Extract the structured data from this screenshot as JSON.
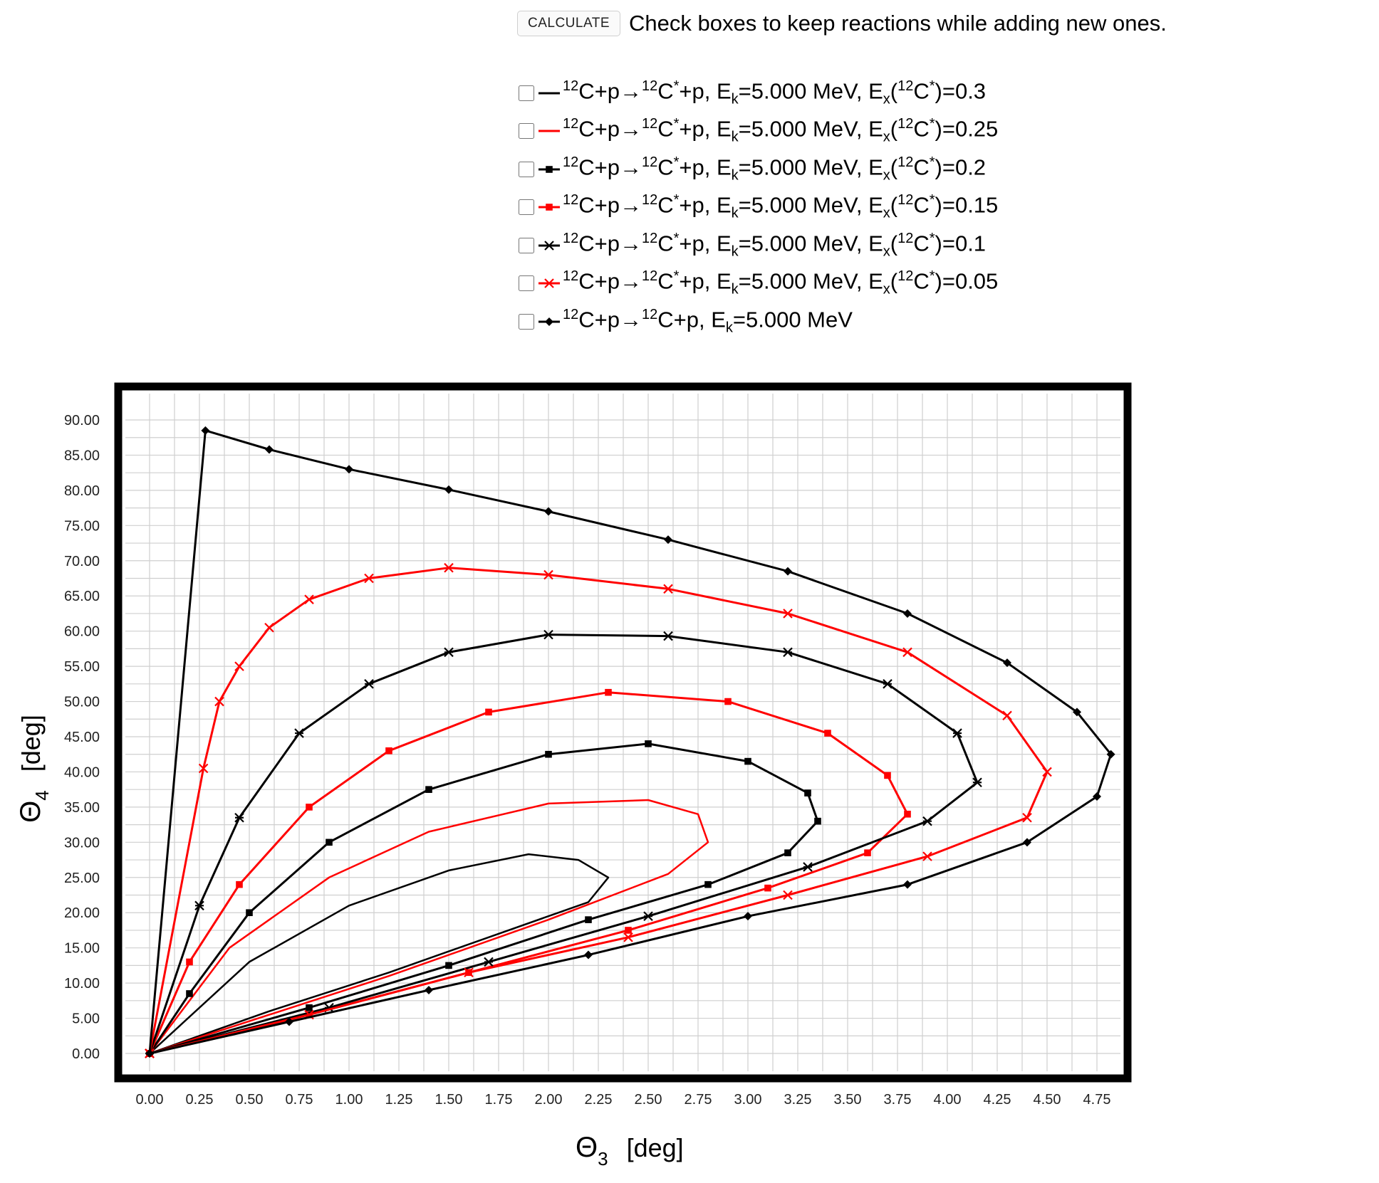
{
  "controls": {
    "calculate_label": "CALCULATE",
    "hint": "Check boxes to keep reactions while adding new ones."
  },
  "legend": [
    {
      "pre": "12",
      "m1": "C+p→",
      "pre2": "12",
      "m2": "C",
      "star": "*",
      "m3": "+p, E",
      "sub": "k",
      "m4": "=5.000 MeV, E",
      "sub2": "x",
      "m5": "(",
      "pre3": "12",
      "m6": "C",
      "star2": "*",
      "m7": ")=0.3",
      "checked": false,
      "color": "#000000",
      "marker": "none"
    },
    {
      "pre": "12",
      "m1": "C+p→",
      "pre2": "12",
      "m2": "C",
      "star": "*",
      "m3": "+p, E",
      "sub": "k",
      "m4": "=5.000 MeV, E",
      "sub2": "x",
      "m5": "(",
      "pre3": "12",
      "m6": "C",
      "star2": "*",
      "m7": ")=0.25",
      "checked": false,
      "color": "#ff0000",
      "marker": "none"
    },
    {
      "pre": "12",
      "m1": "C+p→",
      "pre2": "12",
      "m2": "C",
      "star": "*",
      "m3": "+p, E",
      "sub": "k",
      "m4": "=5.000 MeV, E",
      "sub2": "x",
      "m5": "(",
      "pre3": "12",
      "m6": "C",
      "star2": "*",
      "m7": ")=0.2",
      "checked": false,
      "color": "#000000",
      "marker": "square"
    },
    {
      "pre": "12",
      "m1": "C+p→",
      "pre2": "12",
      "m2": "C",
      "star": "*",
      "m3": "+p, E",
      "sub": "k",
      "m4": "=5.000 MeV, E",
      "sub2": "x",
      "m5": "(",
      "pre3": "12",
      "m6": "C",
      "star2": "*",
      "m7": ")=0.15",
      "checked": false,
      "color": "#ff0000",
      "marker": "square"
    },
    {
      "pre": "12",
      "m1": "C+p→",
      "pre2": "12",
      "m2": "C",
      "star": "*",
      "m3": "+p, E",
      "sub": "k",
      "m4": "=5.000 MeV, E",
      "sub2": "x",
      "m5": "(",
      "pre3": "12",
      "m6": "C",
      "star2": "*",
      "m7": ")=0.1",
      "checked": false,
      "color": "#000000",
      "marker": "star"
    },
    {
      "pre": "12",
      "m1": "C+p→",
      "pre2": "12",
      "m2": "C",
      "star": "*",
      "m3": "+p, E",
      "sub": "k",
      "m4": "=5.000 MeV, E",
      "sub2": "x",
      "m5": "(",
      "pre3": "12",
      "m6": "C",
      "star2": "*",
      "m7": ")=0.05",
      "checked": false,
      "color": "#ff0000",
      "marker": "x"
    },
    {
      "pre": "12",
      "m1": "C+p→",
      "pre2": "12",
      "m2": "C+p, E",
      "star": "",
      "m3": "",
      "sub": "k",
      "m4": "=5.000 MeV",
      "sub2": "",
      "m5": "",
      "pre3": "",
      "m6": "",
      "star2": "",
      "m7": "",
      "checked": false,
      "color": "#000000",
      "marker": "diamond"
    }
  ],
  "chart_data": {
    "type": "line",
    "xlabel": "Θ3 [deg]",
    "ylabel": "Θ4 [deg]",
    "xlabel_main": "Θ",
    "xlabel_sub": "3",
    "xlabel_unit": "[deg]",
    "ylabel_main": "Θ",
    "ylabel_sub": "4",
    "ylabel_unit": "[deg]",
    "xlim": [
      0,
      4.75
    ],
    "ylim": [
      0,
      90
    ],
    "xticks": [
      "0.00",
      "0.25",
      "0.50",
      "0.75",
      "1.00",
      "1.25",
      "1.50",
      "1.75",
      "2.00",
      "2.25",
      "2.50",
      "2.75",
      "3.00",
      "3.25",
      "3.50",
      "3.75",
      "4.00",
      "4.25",
      "4.50",
      "4.75"
    ],
    "yticks": [
      "0.00",
      "5.00",
      "10.00",
      "15.00",
      "20.00",
      "25.00",
      "30.00",
      "35.00",
      "40.00",
      "45.00",
      "50.00",
      "55.00",
      "60.00",
      "65.00",
      "70.00",
      "75.00",
      "80.00",
      "85.00",
      "90.00"
    ],
    "grid": true,
    "series": [
      {
        "name": "12C+p→12C*+p, Ek=5.000 MeV, Ex(12C*)=0.3",
        "color": "#000000",
        "marker": "none",
        "x": [
          0,
          0.5,
          1.0,
          1.5,
          1.9,
          2.15,
          2.3,
          2.2,
          1.8,
          1.2,
          0.6,
          0
        ],
        "y": [
          0,
          13,
          21,
          26,
          28.3,
          27.5,
          25,
          21.5,
          17.5,
          11.5,
          6,
          0
        ]
      },
      {
        "name": "12C+p→12C*+p, Ek=5.000 MeV, Ex(12C*)=0.25",
        "color": "#ff0000",
        "marker": "none",
        "x": [
          0,
          0.4,
          0.9,
          1.4,
          2.0,
          2.5,
          2.75,
          2.8,
          2.6,
          2.0,
          1.2,
          0.6,
          0
        ],
        "y": [
          0,
          15,
          25,
          31.5,
          35.5,
          36,
          34,
          30,
          25.5,
          19,
          11,
          5.5,
          0
        ]
      },
      {
        "name": "12C+p→12C*+p, Ek=5.000 MeV, Ex(12C*)=0.2",
        "color": "#000000",
        "marker": "square",
        "x": [
          0,
          0.2,
          0.5,
          0.9,
          1.4,
          2.0,
          2.5,
          3.0,
          3.3,
          3.35,
          3.2,
          2.8,
          2.2,
          1.5,
          0.8,
          0
        ],
        "y": [
          0,
          8.5,
          20,
          30,
          37.5,
          42.5,
          44,
          41.5,
          37,
          33,
          28.5,
          24,
          19,
          12.5,
          6.5,
          0
        ]
      },
      {
        "name": "12C+p→12C*+p, Ek=5.000 MeV, Ex(12C*)=0.15",
        "color": "#ff0000",
        "marker": "square",
        "x": [
          0,
          0.2,
          0.45,
          0.8,
          1.2,
          1.7,
          2.3,
          2.9,
          3.4,
          3.7,
          3.8,
          3.6,
          3.1,
          2.4,
          1.6,
          0.8,
          0
        ],
        "y": [
          0,
          13,
          24,
          35,
          43,
          48.5,
          51.3,
          50,
          45.5,
          39.5,
          34,
          28.5,
          23.5,
          17.5,
          11.5,
          5.5,
          0
        ]
      },
      {
        "name": "12C+p→12C*+p, Ek=5.000 MeV, Ex(12C*)=0.1",
        "color": "#000000",
        "marker": "star",
        "x": [
          0,
          0.25,
          0.45,
          0.75,
          1.1,
          1.5,
          2.0,
          2.6,
          3.2,
          3.7,
          4.05,
          4.15,
          3.9,
          3.3,
          2.5,
          1.7,
          0.9,
          0
        ],
        "y": [
          0,
          21,
          33.5,
          45.5,
          52.5,
          57,
          59.5,
          59.3,
          57,
          52.5,
          45.5,
          38.5,
          33,
          26.5,
          19.5,
          13,
          6.5,
          0
        ]
      },
      {
        "name": "12C+p→12C*+p, Ek=5.000 MeV, Ex(12C*)=0.05",
        "color": "#ff0000",
        "marker": "x",
        "x": [
          0,
          0.27,
          0.35,
          0.45,
          0.6,
          0.8,
          1.1,
          1.5,
          2.0,
          2.6,
          3.2,
          3.8,
          4.3,
          4.5,
          4.4,
          3.9,
          3.2,
          2.4,
          1.6,
          0.8,
          0
        ],
        "y": [
          0,
          40.5,
          50,
          55,
          60.5,
          64.5,
          67.5,
          69,
          68,
          66,
          62.5,
          57,
          48,
          40,
          33.5,
          28,
          22.5,
          16.5,
          11.5,
          5.5,
          0
        ]
      },
      {
        "name": "12C+p→12C+p, Ek=5.000 MeV",
        "color": "#000000",
        "marker": "diamond",
        "x": [
          0,
          0.28,
          0.6,
          1.0,
          1.5,
          2.0,
          2.6,
          3.2,
          3.8,
          4.3,
          4.65,
          4.82,
          4.75,
          4.4,
          3.8,
          3.0,
          2.2,
          1.4,
          0.7,
          0
        ],
        "y": [
          0,
          88.5,
          85.8,
          83,
          80.1,
          77,
          73,
          68.5,
          62.5,
          55.5,
          48.5,
          42.5,
          36.5,
          30,
          24,
          19.5,
          14,
          9,
          4.5,
          0
        ]
      }
    ]
  }
}
